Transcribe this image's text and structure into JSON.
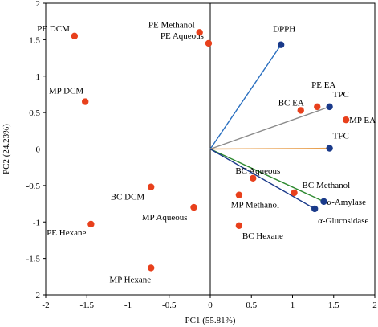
{
  "chart_data": {
    "type": "scatter",
    "title": "",
    "xlabel": "PC1 (55.81%)",
    "ylabel": "PC2 (24.23%)",
    "xlim": [
      -2,
      2
    ],
    "ylim": [
      -2,
      2
    ],
    "xticks": [
      -2,
      -1.5,
      -1,
      -0.5,
      0,
      0.5,
      1,
      1.5,
      2
    ],
    "yticks": [
      -2,
      -1.5,
      -1,
      -0.5,
      0,
      0.5,
      1,
      1.5,
      2
    ],
    "xtick_labels": [
      "-2",
      "-1.5",
      "-1",
      "-0.5",
      "0",
      "0.5",
      "1",
      "1.5",
      "2"
    ],
    "ytick_labels": [
      "-2",
      "-1.5",
      "-1",
      "-0.5",
      "0",
      "0.5",
      "1",
      "1.5",
      "2"
    ],
    "grid": false,
    "colors": {
      "samples": "#e8401c",
      "variables": "#1a3a8a"
    },
    "samples": [
      {
        "label": "PE DCM",
        "x": -1.65,
        "y": 1.55,
        "anchor": "end",
        "dx": -6,
        "dy": -6
      },
      {
        "label": "PE Methanol",
        "x": -0.13,
        "y": 1.6,
        "anchor": "end",
        "dx": -6,
        "dy": -6
      },
      {
        "label": "PE Aqueous",
        "x": -0.02,
        "y": 1.45,
        "anchor": "end",
        "dx": -6,
        "dy": -6
      },
      {
        "label": "MP DCM",
        "x": -1.52,
        "y": 0.65,
        "anchor": "end",
        "dx": -2,
        "dy": -10
      },
      {
        "label": "BC EA",
        "x": 1.1,
        "y": 0.53,
        "anchor": "middle",
        "dx": -12,
        "dy": -6
      },
      {
        "label": "PE EA",
        "x": 1.3,
        "y": 0.58,
        "anchor": "middle",
        "dx": 8,
        "dy": -24
      },
      {
        "label": "MP EA",
        "x": 1.65,
        "y": 0.4,
        "anchor": "start",
        "dx": 4,
        "dy": 4
      },
      {
        "label": "BC Aqueous",
        "x": 0.52,
        "y": -0.4,
        "anchor": "middle",
        "dx": 6,
        "dy": -6
      },
      {
        "label": "BC Methanol",
        "x": 1.02,
        "y": -0.6,
        "anchor": "start",
        "dx": 10,
        "dy": -6
      },
      {
        "label": "MP Methanol",
        "x": 0.35,
        "y": -0.63,
        "anchor": "middle",
        "dx": 20,
        "dy": 16
      },
      {
        "label": "BC DCM",
        "x": -0.72,
        "y": -0.52,
        "anchor": "end",
        "dx": -8,
        "dy": 16
      },
      {
        "label": "MP Aqueous",
        "x": -0.2,
        "y": -0.8,
        "anchor": "end",
        "dx": -8,
        "dy": 16
      },
      {
        "label": "PE Hexane",
        "x": -1.45,
        "y": -1.03,
        "anchor": "end",
        "dx": -6,
        "dy": 14
      },
      {
        "label": "BC Hexane",
        "x": 0.35,
        "y": -1.05,
        "anchor": "start",
        "dx": 4,
        "dy": 16
      },
      {
        "label": "MP Hexane",
        "x": -0.72,
        "y": -1.63,
        "anchor": "end",
        "dx": 0,
        "dy": 18
      }
    ],
    "variables": [
      {
        "label": "DPPH",
        "x": 0.86,
        "y": 1.43,
        "color": "#2a6fc0",
        "anchor": "middle",
        "dx": 4,
        "dy": -16
      },
      {
        "label": "TPC",
        "x": 1.45,
        "y": 0.58,
        "color": "#8a8a8a",
        "anchor": "start",
        "dx": 4,
        "dy": -12
      },
      {
        "label": "TFC",
        "x": 1.45,
        "y": 0.01,
        "color": "#e8a050",
        "anchor": "start",
        "dx": 4,
        "dy": -12
      },
      {
        "label": "α-Amylase",
        "x": 1.38,
        "y": -0.72,
        "color": "#2e8a30",
        "anchor": "start",
        "dx": 4,
        "dy": 4
      },
      {
        "label": "α-Glucosidase",
        "x": 1.27,
        "y": -0.82,
        "color": "#1a3a8a",
        "anchor": "start",
        "dx": 4,
        "dy": 18
      }
    ]
  }
}
